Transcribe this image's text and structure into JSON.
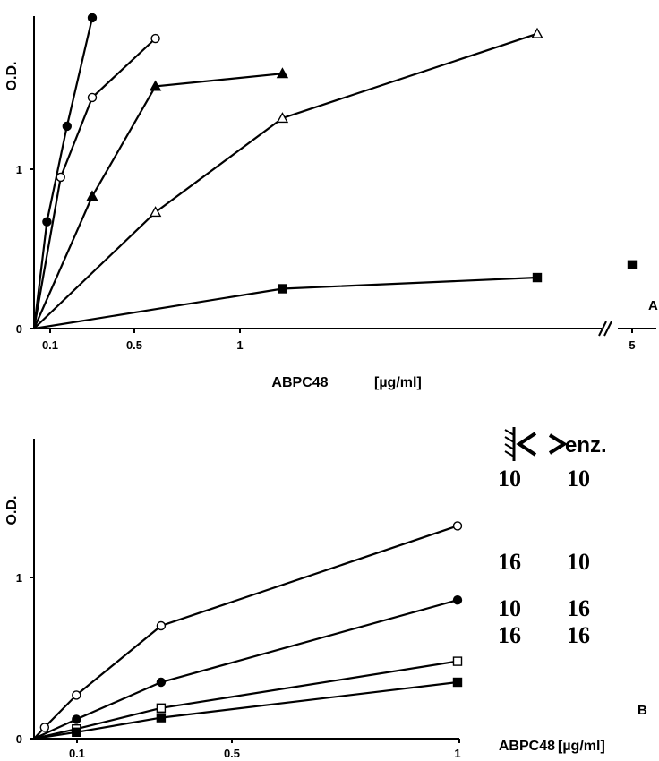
{
  "chart_data": [
    {
      "type": "line",
      "panel_label": "A",
      "ylabel": "O.D.",
      "xlabel": "ABPC48",
      "xunit": "[µg/ml]",
      "xticks": [
        "0.1",
        "0.5",
        "1",
        "5"
      ],
      "yticks": [
        "0",
        "1"
      ],
      "xlim": [
        0,
        1.6
      ],
      "ylim": [
        0,
        2
      ],
      "x_axis_break": true,
      "series": [
        {
          "marker": "filled-circle",
          "points": [
            [
              0,
              0
            ],
            [
              0.08,
              0.67
            ],
            [
              0.18,
              1.27
            ],
            [
              0.3,
              1.95
            ]
          ]
        },
        {
          "marker": "open-circle",
          "points": [
            [
              0,
              0
            ],
            [
              0.15,
              0.95
            ],
            [
              0.3,
              1.45
            ],
            [
              0.6,
              1.82
            ]
          ]
        },
        {
          "marker": "filled-triangle",
          "points": [
            [
              0,
              0
            ],
            [
              0.3,
              0.83
            ],
            [
              0.6,
              1.52
            ],
            [
              1.2,
              1.6
            ]
          ]
        },
        {
          "marker": "open-triangle",
          "points": [
            [
              0,
              0
            ],
            [
              0.6,
              0.73
            ],
            [
              1.2,
              1.32
            ],
            [
              2.4,
              1.85
            ]
          ]
        },
        {
          "marker": "filled-square",
          "points": [
            [
              0,
              0
            ],
            [
              1.2,
              0.25
            ],
            [
              2.4,
              0.32
            ]
          ]
        },
        {
          "marker": "filled-square",
          "points": [
            [
              5,
              0.4
            ]
          ],
          "connected": false
        }
      ]
    },
    {
      "type": "line",
      "panel_label": "B",
      "ylabel": "O.D.",
      "xlabel": "ABPC48",
      "xunit": "[µg/ml]",
      "xticks": [
        "0.1",
        "0.5",
        "1"
      ],
      "yticks": [
        "0",
        "1"
      ],
      "xlim": [
        0,
        1
      ],
      "ylim": [
        0,
        1.6
      ],
      "series": [
        {
          "marker": "open-circle",
          "points": [
            [
              0,
              0
            ],
            [
              0.025,
              0.07
            ],
            [
              0.1,
              0.27
            ],
            [
              0.3,
              0.7
            ],
            [
              1.0,
              1.32
            ]
          ]
        },
        {
          "marker": "filled-circle",
          "points": [
            [
              0,
              0
            ],
            [
              0.1,
              0.12
            ],
            [
              0.3,
              0.35
            ],
            [
              1.0,
              0.86
            ]
          ]
        },
        {
          "marker": "open-square",
          "points": [
            [
              0,
              0
            ],
            [
              0.1,
              0.06
            ],
            [
              0.3,
              0.19
            ],
            [
              1.0,
              0.48
            ]
          ]
        },
        {
          "marker": "filled-square",
          "points": [
            [
              0,
              0
            ],
            [
              0.1,
              0.04
            ],
            [
              0.3,
              0.13
            ],
            [
              1.0,
              0.35
            ]
          ]
        }
      ],
      "legend_table": {
        "header_enzyme": "enz.",
        "rows": [
          [
            "10",
            "10"
          ],
          [
            "16",
            "10"
          ],
          [
            "10",
            "16"
          ],
          [
            "16",
            "16"
          ]
        ]
      }
    }
  ]
}
